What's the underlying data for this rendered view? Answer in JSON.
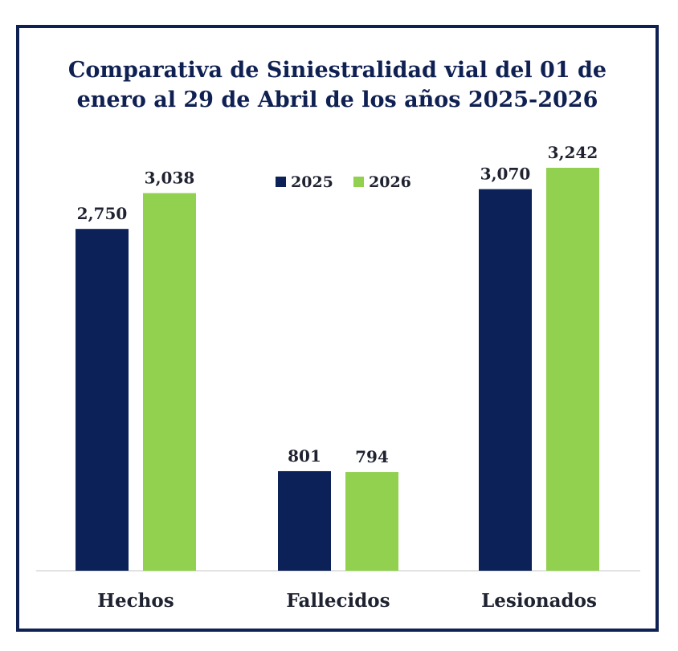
{
  "colors": {
    "frame": "#0f2052",
    "series_2025": "#0c2157",
    "series_2026": "#92d050",
    "axis": "#d9d9d9",
    "text": "#1f2230"
  },
  "chart_data": {
    "type": "bar",
    "title_lines": [
      "Comparativa de Siniestralidad vial del 01 de",
      "enero al 29 de Abril de los años 2025-2026"
    ],
    "categories": [
      "Hechos",
      "Fallecidos",
      "Lesionados"
    ],
    "series": [
      {
        "name": "2025",
        "values": [
          2750,
          801,
          3070
        ],
        "labels": [
          "2,750",
          "801",
          "3,070"
        ]
      },
      {
        "name": "2026",
        "values": [
          3038,
          794,
          3242
        ],
        "labels": [
          "3,038",
          "794",
          "3,242"
        ]
      }
    ],
    "legend": "top-center",
    "grid": false,
    "ylim": [
      0,
      3242
    ]
  }
}
